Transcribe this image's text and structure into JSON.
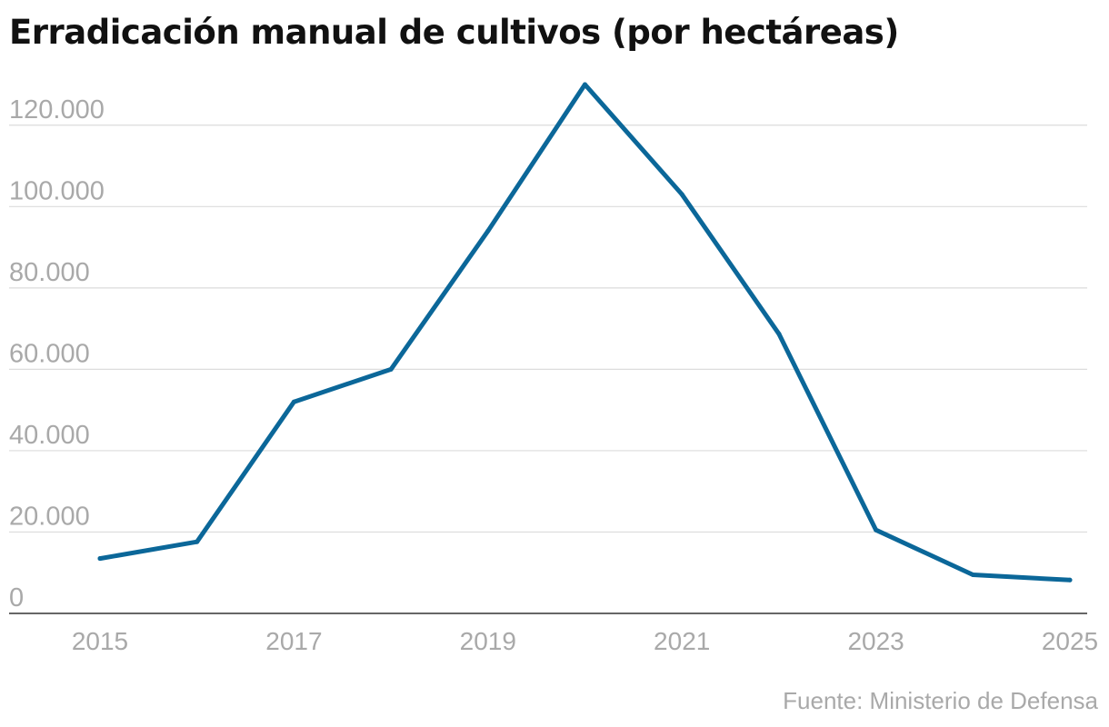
{
  "chart_data": {
    "type": "line",
    "title": "Erradicación manual de cultivos (por hectáreas)",
    "xlabel": "",
    "ylabel": "",
    "x": [
      2015,
      2016,
      2017,
      2018,
      2019,
      2020,
      2021,
      2022,
      2023,
      2024,
      2025
    ],
    "series": [
      {
        "values": [
          13500,
          17600,
          52000,
          60000,
          94000,
          130000,
          103000,
          68700,
          20500,
          9500,
          8200
        ]
      }
    ],
    "ylim": [
      0,
      130000
    ],
    "xlim": [
      2015,
      2025
    ],
    "yticks": [
      "0",
      "20.000",
      "40.000",
      "60.000",
      "80.000",
      "100.000",
      "120.000"
    ],
    "ytick_values": [
      0,
      20000,
      40000,
      60000,
      80000,
      100000,
      120000
    ],
    "xticks": [
      "2015",
      "2017",
      "2019",
      "2021",
      "2023",
      "2025"
    ],
    "xtick_values": [
      2015,
      2017,
      2019,
      2021,
      2023,
      2025
    ],
    "grid": true,
    "line_color": "#0b6799",
    "grid_color": "#dcdcdc",
    "tick_color": "#a9a9a9",
    "source": "Fuente: Ministerio de Defensa"
  }
}
